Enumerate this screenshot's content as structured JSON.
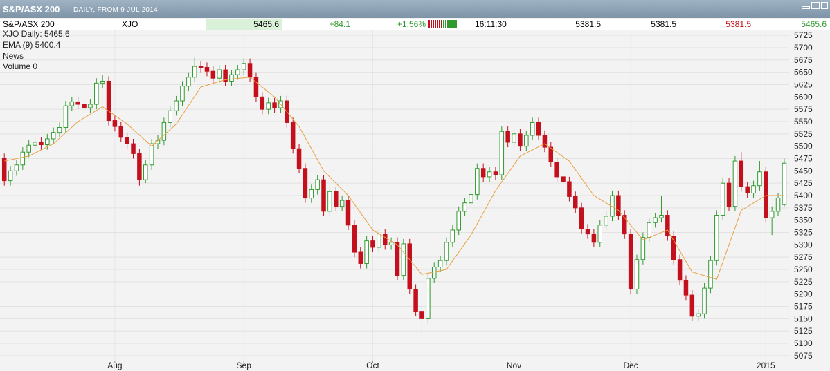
{
  "header": {
    "title": "S&P/ASX 200",
    "subtitle": "DAILY, FROM  9 JUL 2014",
    "row": [
      "S&P/ASX 200",
      "XJO",
      "5465.6",
      "+84.1",
      "+1.56%",
      "16:11:30",
      "5381.5",
      "5381.5",
      "5381.5",
      "5465.6"
    ]
  },
  "chart_data": {
    "type": "candlestick",
    "legend": [
      "XJO Daily: 5465.6",
      "EMA (9) 5400.4",
      "News",
      "Volume 0"
    ],
    "up_color": "#2f9a2f",
    "down_color": "#c4101c",
    "grid": true,
    "open": [
      5475,
      5430,
      5450,
      5462,
      5488,
      5502,
      5508,
      5503,
      5515,
      5528,
      5538,
      5582,
      5590,
      5585,
      5578,
      5585,
      5628,
      5632,
      5552,
      5540,
      5518,
      5505,
      5485,
      5432,
      5462,
      5505,
      5512,
      5548,
      5572,
      5592,
      5622,
      5640,
      5662,
      5660,
      5652,
      5638,
      5655,
      5632,
      5645,
      5655,
      5668,
      5640,
      5600,
      5575,
      5588,
      5578,
      5592,
      5548,
      5495,
      5455,
      5395,
      5412,
      5432,
      5368,
      5408,
      5378,
      5390,
      5340,
      5285,
      5262,
      5308,
      5295,
      5322,
      5300,
      5305,
      5238,
      5302,
      5210,
      5165,
      5150,
      5232,
      5255,
      5268,
      5305,
      5330,
      5368,
      5385,
      5402,
      5455,
      5438,
      5448,
      5442,
      5530,
      5508,
      5525,
      5500,
      5522,
      5548,
      5522,
      5498,
      5468,
      5438,
      5428,
      5398,
      5375,
      5332,
      5322,
      5305,
      5340,
      5358,
      5400,
      5360,
      5322,
      5210,
      5270,
      5315,
      5345,
      5355,
      5360,
      5318,
      5270,
      5228,
      5198,
      5155,
      5160,
      5212,
      5268,
      5360,
      5425,
      5378,
      5470,
      5418,
      5405,
      5420,
      5448,
      5355,
      5368,
      5381.5
    ],
    "high": [
      5485,
      5460,
      5472,
      5498,
      5512,
      5518,
      5518,
      5525,
      5538,
      5548,
      5592,
      5600,
      5600,
      5595,
      5595,
      5638,
      5645,
      5642,
      5562,
      5550,
      5528,
      5515,
      5495,
      5472,
      5515,
      5522,
      5558,
      5582,
      5602,
      5632,
      5650,
      5680,
      5672,
      5670,
      5662,
      5665,
      5665,
      5655,
      5665,
      5678,
      5678,
      5650,
      5610,
      5598,
      5598,
      5602,
      5602,
      5558,
      5505,
      5465,
      5422,
      5442,
      5442,
      5418,
      5418,
      5400,
      5400,
      5350,
      5295,
      5318,
      5318,
      5332,
      5332,
      5315,
      5315,
      5312,
      5312,
      5220,
      5175,
      5242,
      5265,
      5278,
      5315,
      5340,
      5378,
      5395,
      5412,
      5465,
      5465,
      5458,
      5458,
      5540,
      5540,
      5535,
      5535,
      5532,
      5558,
      5558,
      5532,
      5508,
      5478,
      5448,
      5438,
      5408,
      5385,
      5342,
      5332,
      5350,
      5368,
      5410,
      5410,
      5370,
      5332,
      5280,
      5325,
      5355,
      5365,
      5400,
      5370,
      5328,
      5280,
      5238,
      5208,
      5170,
      5222,
      5278,
      5370,
      5435,
      5435,
      5480,
      5488,
      5428,
      5430,
      5470,
      5458,
      5378,
      5405,
      5475
    ],
    "low": [
      5420,
      5420,
      5440,
      5452,
      5478,
      5492,
      5493,
      5493,
      5505,
      5518,
      5528,
      5572,
      5575,
      5568,
      5568,
      5575,
      5618,
      5542,
      5530,
      5508,
      5495,
      5475,
      5420,
      5425,
      5452,
      5495,
      5502,
      5538,
      5562,
      5582,
      5612,
      5630,
      5650,
      5642,
      5628,
      5628,
      5622,
      5622,
      5635,
      5645,
      5630,
      5590,
      5565,
      5565,
      5568,
      5568,
      5538,
      5485,
      5445,
      5385,
      5385,
      5402,
      5358,
      5358,
      5368,
      5368,
      5330,
      5275,
      5252,
      5252,
      5285,
      5285,
      5290,
      5290,
      5228,
      5228,
      5200,
      5155,
      5120,
      5140,
      5222,
      5245,
      5258,
      5295,
      5320,
      5358,
      5375,
      5392,
      5428,
      5428,
      5432,
      5432,
      5498,
      5498,
      5490,
      5490,
      5512,
      5512,
      5488,
      5458,
      5428,
      5418,
      5388,
      5365,
      5322,
      5312,
      5295,
      5295,
      5330,
      5348,
      5350,
      5312,
      5200,
      5200,
      5260,
      5305,
      5335,
      5345,
      5308,
      5260,
      5218,
      5188,
      5145,
      5145,
      5150,
      5202,
      5258,
      5350,
      5368,
      5368,
      5408,
      5395,
      5395,
      5410,
      5345,
      5320,
      5358,
      5378
    ],
    "close": [
      5430,
      5450,
      5462,
      5488,
      5502,
      5508,
      5503,
      5515,
      5528,
      5538,
      5582,
      5590,
      5585,
      5578,
      5585,
      5628,
      5632,
      5552,
      5540,
      5518,
      5505,
      5485,
      5432,
      5462,
      5505,
      5512,
      5548,
      5572,
      5592,
      5622,
      5640,
      5662,
      5660,
      5652,
      5638,
      5655,
      5632,
      5645,
      5655,
      5668,
      5640,
      5600,
      5575,
      5588,
      5578,
      5592,
      5548,
      5495,
      5455,
      5395,
      5412,
      5432,
      5368,
      5408,
      5378,
      5390,
      5340,
      5285,
      5262,
      5308,
      5295,
      5322,
      5300,
      5305,
      5238,
      5302,
      5210,
      5165,
      5150,
      5232,
      5255,
      5268,
      5305,
      5330,
      5368,
      5385,
      5402,
      5455,
      5438,
      5448,
      5442,
      5530,
      5508,
      5525,
      5500,
      5522,
      5548,
      5522,
      5498,
      5468,
      5438,
      5428,
      5398,
      5375,
      5332,
      5322,
      5305,
      5340,
      5358,
      5400,
      5360,
      5322,
      5210,
      5270,
      5315,
      5345,
      5355,
      5360,
      5318,
      5270,
      5228,
      5198,
      5155,
      5160,
      5212,
      5268,
      5360,
      5425,
      5378,
      5470,
      5418,
      5405,
      5420,
      5448,
      5355,
      5368,
      5395,
      5465.6
    ],
    "ema": {
      "color": "#e8a040",
      "x": [
        0,
        4,
        8,
        12,
        16,
        20,
        24,
        28,
        32,
        36,
        40,
        44,
        48,
        52,
        56,
        60,
        64,
        68,
        72,
        76,
        80,
        84,
        88,
        92,
        96,
        100,
        104,
        108,
        112,
        116,
        120,
        124,
        127
      ],
      "values": [
        5470,
        5480,
        5505,
        5550,
        5580,
        5545,
        5500,
        5545,
        5620,
        5635,
        5640,
        5600,
        5540,
        5450,
        5400,
        5330,
        5300,
        5240,
        5250,
        5320,
        5410,
        5480,
        5505,
        5470,
        5400,
        5370,
        5310,
        5330,
        5245,
        5230,
        5370,
        5400,
        5400
      ]
    },
    "xlim": [
      -0.7,
      127.8
    ],
    "xticks": [
      {
        "value": 18,
        "label": "Aug"
      },
      {
        "value": 39,
        "label": "Sep"
      },
      {
        "value": 60,
        "label": "Oct"
      },
      {
        "value": 83,
        "label": "Nov"
      },
      {
        "value": 102,
        "label": "Dec"
      },
      {
        "value": 124,
        "label": "2015"
      }
    ],
    "ylim": [
      5065,
      5735
    ],
    "yticks": [
      5075,
      5100,
      5125,
      5150,
      5175,
      5200,
      5225,
      5250,
      5275,
      5300,
      5325,
      5350,
      5375,
      5400,
      5425,
      5450,
      5475,
      5500,
      5525,
      5550,
      5575,
      5600,
      5625,
      5650,
      5675,
      5700,
      5725
    ]
  }
}
